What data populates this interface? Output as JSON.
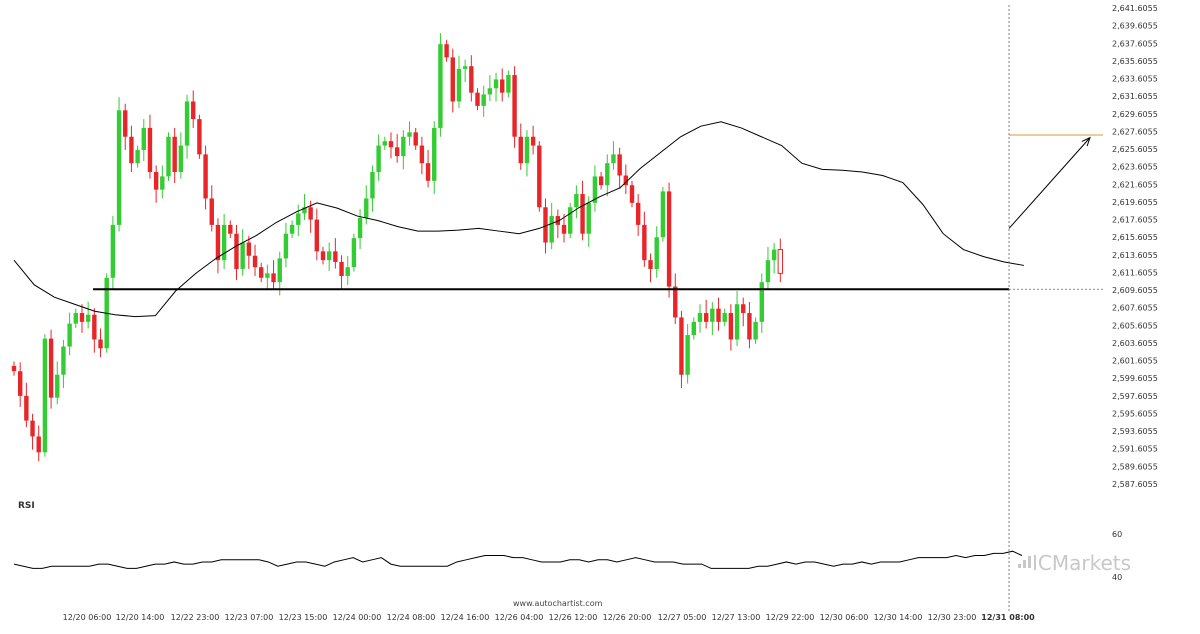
{
  "chart_data": {
    "type": "candlestick",
    "instrument": "",
    "y_axis": {
      "min": 2587.6055,
      "max": 2641.6055,
      "step": 2,
      "decimals": 4,
      "ticks": [
        "2,641.6055",
        "2,639.6055",
        "2,637.6055",
        "2,635.6055",
        "2,633.6055",
        "2,631.6055",
        "2,629.6055",
        "2,627.6055",
        "2,625.6055",
        "2,623.6055",
        "2,621.6055",
        "2,619.6055",
        "2,617.6055",
        "2,615.6055",
        "2,613.6055",
        "2,611.6055",
        "2,609.6055",
        "2,607.6055",
        "2,605.6055",
        "2,603.6055",
        "2,601.6055",
        "2,599.6055",
        "2,597.6055",
        "2,595.6055",
        "2,593.6055",
        "2,591.6055",
        "2,589.6055",
        "2,587.6055"
      ]
    },
    "x_axis": {
      "tick_labels": [
        "12/20 06:00",
        "12/20 14:00",
        "12/22 23:00",
        "12/23 07:00",
        "12/23 15:00",
        "12/24 00:00",
        "12/24 08:00",
        "12/24 16:00",
        "12/26 04:00",
        "12/26 12:00",
        "12/26 20:00",
        "12/27 05:00",
        "12/27 13:00",
        "12/29 22:00",
        "12/30 06:00",
        "12/30 14:00",
        "12/30 23:00",
        "12/31 08:00"
      ],
      "highlight_label": "12/31 08:00"
    },
    "closes": [
      2600.4,
      2597.6,
      2594.8,
      2593.0,
      2591.2,
      2604.1,
      2597.4,
      2600.0,
      2603.2,
      2605.8,
      2607.0,
      2606.0,
      2606.8,
      2604.0,
      2603.0,
      2611.0,
      2617.0,
      2630.0,
      2627.0,
      2624.0,
      2625.5,
      2628.0,
      2623.0,
      2621.0,
      2622.5,
      2627.0,
      2623.0,
      2626.0,
      2631.0,
      2629.0,
      2625.0,
      2620.0,
      2617.0,
      2613.0,
      2617.0,
      2616.0,
      2612.0,
      2615.0,
      2613.5,
      2612.2,
      2611.0,
      2611.5,
      2610.5,
      2613.2,
      2616.0,
      2617.0,
      2618.3,
      2619.0,
      2617.6,
      2614.0,
      2613.0,
      2614.0,
      2612.8,
      2611.2,
      2612.2,
      2615.5,
      2617.8,
      2620.0,
      2623.0,
      2626.0,
      2626.5,
      2625.8,
      2624.8,
      2627.0,
      2627.5,
      2626.0,
      2624.0,
      2622.0,
      2628.0,
      2637.5,
      2636.0,
      2631.0,
      2634.7,
      2635.0,
      2632.0,
      2630.5,
      2631.8,
      2632.5,
      2633.5,
      2632.0,
      2634.0,
      2627.0,
      2624.0,
      2627.0,
      2626.0,
      2619.0,
      2615.0,
      2618.0,
      2617.0,
      2616.0,
      2619.0,
      2620.5,
      2616.0,
      2619.5,
      2622.5,
      2621.5,
      2624.0,
      2625.0,
      2622.6,
      2621.5,
      2619.5,
      2617.0,
      2613.0,
      2612.0,
      2615.6,
      2620.8,
      2610.0,
      2606.5,
      2600.0,
      2604.5,
      2606.0,
      2607.0,
      2606.0,
      2607.5,
      2606.0,
      2607.0,
      2604.0,
      2608.0,
      2607.0,
      2604.0,
      2606.0,
      2610.5,
      2613.0,
      2614.2,
      2611.5
    ],
    "support_level": 2609.7,
    "moving_average_points": [
      2613.0,
      2610.2,
      2608.8,
      2608.0,
      2607.2,
      2606.8,
      2606.6,
      2606.7,
      2609.5,
      2611.5,
      2613.2,
      2614.6,
      2615.8,
      2617.3,
      2618.5,
      2619.5,
      2618.9,
      2618.0,
      2617.5,
      2616.8,
      2616.3,
      2616.3,
      2616.4,
      2616.6,
      2616.3,
      2616.0,
      2616.6,
      2617.5,
      2619.0,
      2620.2,
      2621.2,
      2623.4,
      2625.2,
      2627.0,
      2628.2,
      2628.7,
      2628.0,
      2627.0,
      2626.0,
      2624.0,
      2623.3,
      2623.2,
      2623.0,
      2622.6,
      2621.8,
      2619.3,
      2616.0,
      2614.2,
      2613.4,
      2612.8,
      2612.4
    ],
    "projection": {
      "from": 2616.6,
      "to": 2626.9
    },
    "target_level": 2627.2,
    "rsi": {
      "label": "RSI",
      "ticks": [
        "60",
        "40"
      ],
      "range": [
        40,
        60
      ],
      "values": [
        46,
        45,
        44,
        44,
        45,
        45,
        45,
        45,
        45,
        46,
        46,
        45,
        44,
        44,
        45,
        46,
        46,
        47,
        46,
        46,
        47,
        47,
        48,
        48,
        48,
        48,
        48,
        47,
        45,
        46,
        47,
        47,
        46,
        45,
        47,
        48,
        49,
        47,
        48,
        49,
        46,
        45,
        45,
        45,
        45,
        45,
        45,
        47,
        48,
        49,
        50,
        50,
        50,
        49,
        49,
        48,
        47,
        47,
        47,
        48,
        48,
        47,
        48,
        48,
        47,
        48,
        49,
        48,
        47,
        47,
        47,
        46,
        46,
        46,
        44,
        44,
        44,
        44,
        44,
        45,
        45,
        46,
        47,
        46,
        47,
        47,
        46,
        45,
        46,
        46,
        47,
        46,
        47,
        47,
        47,
        48,
        49,
        49,
        49,
        49,
        50,
        49,
        50,
        50,
        51,
        51,
        52,
        50
      ]
    },
    "watermark": "www.autochartist.com",
    "brand": "ICMarkets",
    "colors": {
      "bull": "#33cc33",
      "bear": "#e8262a",
      "last_candle_outline": "#e8262a",
      "support": "#000000",
      "moving_average": "#000000",
      "target": "#d99a3c",
      "projection": "#000000",
      "rsi": "#000000",
      "axis_text": "#333333",
      "brand": "#c8c8c8"
    }
  }
}
